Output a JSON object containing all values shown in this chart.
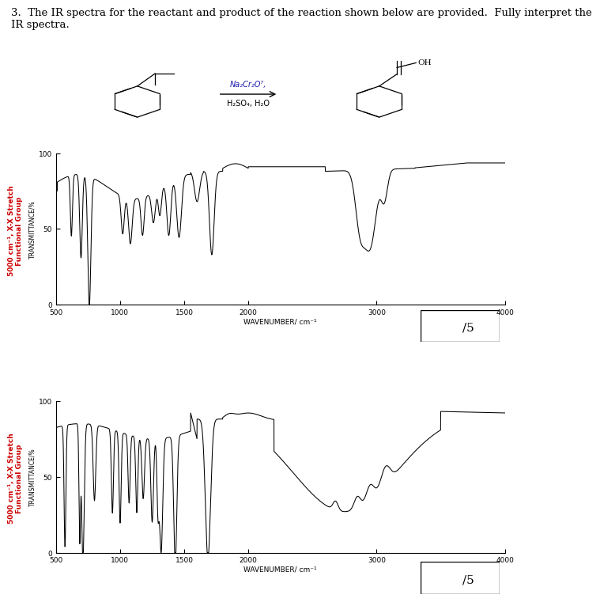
{
  "title_text": "3.  The IR spectra for the reactant and product of the reaction shown below are provided.  Fully interpret the\nIR spectra.",
  "title_fontsize": 9.5,
  "reagent_line1": "Na₂Cr₂O⁷,",
  "reagent_line2": "H₂SO₄, H₂O",
  "score_text": "/5",
  "bg_color": "#ffffff",
  "plot_bg": "#ffffff",
  "spectrum1_ylabel": "TRANSMITTANCE/%",
  "spectrum2_ylabel": "TRANSMITTANCE/%",
  "xlabel": "WAVENUMBER/ cm⁻¹",
  "annot_text": "5000 cm⁻¹, X-X Stretch\nFunctional Group",
  "annot_color": "#cc0000",
  "xmin": 4000,
  "xmax": 500,
  "ymin": 0,
  "ymax": 100,
  "xticks": [
    4000,
    3000,
    2000,
    1500,
    1000,
    500
  ],
  "yticks": [
    0,
    50,
    100
  ]
}
